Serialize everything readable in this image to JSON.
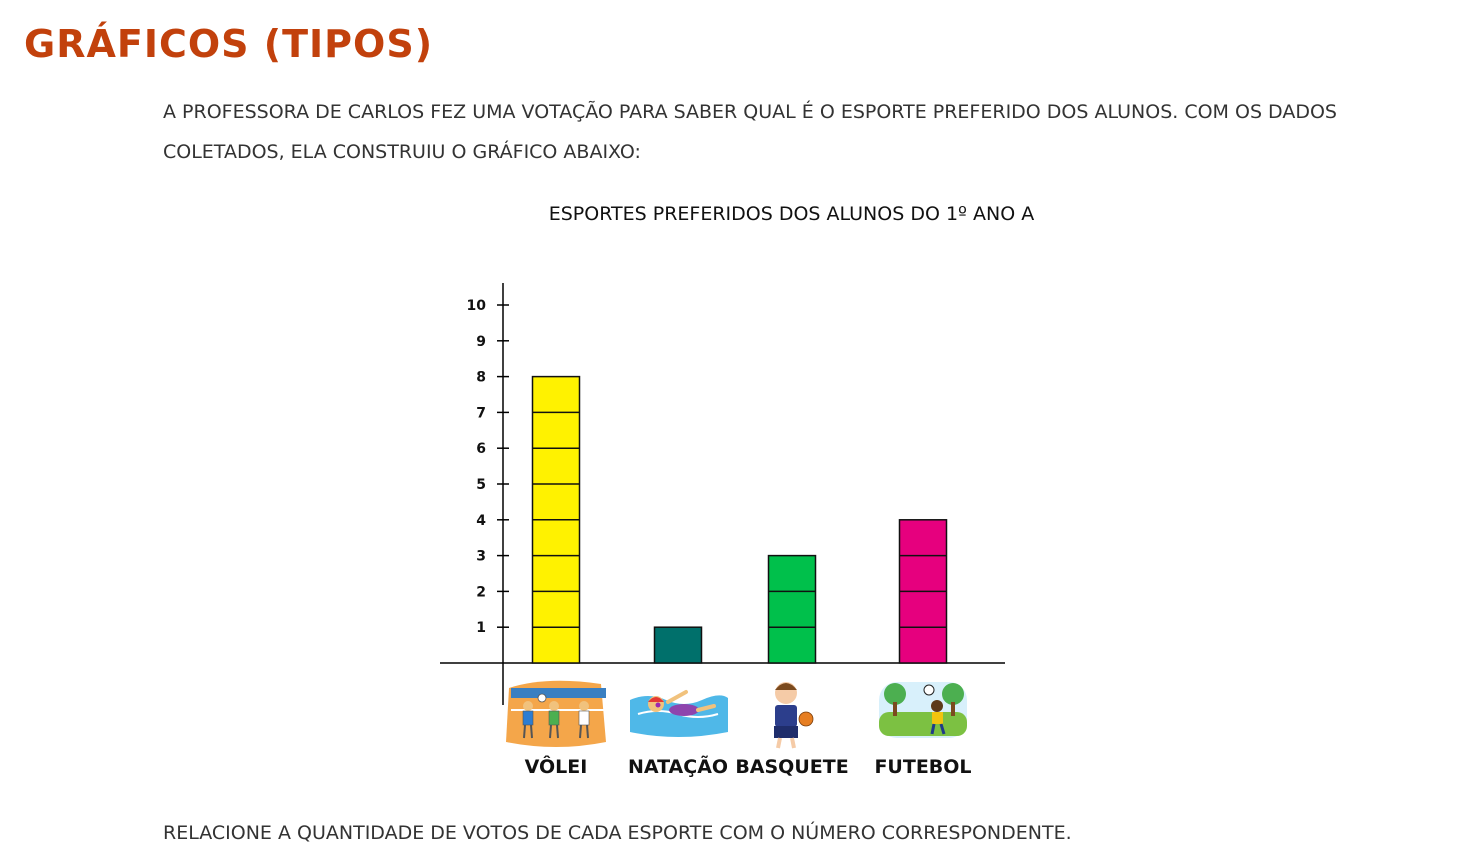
{
  "page": {
    "title": "GRÁFICOS (TIPOS)",
    "intro_line1": "A PROFESSORA DE CARLOS FEZ UMA VOTAÇÃO PARA SABER QUAL É O ESPORTE PREFERIDO DOS ALUNOS. COM OS DADOS",
    "intro_line2": "COLETADOS, ELA CONSTRUIU O GRÁFICO ABAIXO:",
    "instruction": "RELACIONE A QUANTIDADE DE VOTOS DE CADA ESPORTE COM O NÚMERO CORRESPONDENTE."
  },
  "chart_data": {
    "type": "bar",
    "title": "ESPORTES PREFERIDOS DOS ALUNOS DO 1º ANO A",
    "xlabel": "",
    "ylabel": "",
    "categories": [
      "VÔLEI",
      "NATAÇÃO",
      "BASQUETE",
      "FUTEBOL"
    ],
    "values": [
      8,
      1,
      3,
      4
    ],
    "colors": [
      "#fff200",
      "#00706b",
      "#00c04b",
      "#e6007e"
    ],
    "icons": [
      "volleyball-scene-icon",
      "swimmer-icon",
      "basketball-player-icon",
      "soccer-field-icon"
    ],
    "ylim": [
      0,
      10
    ],
    "yticks": [
      "1",
      "2",
      "3",
      "4",
      "5",
      "6",
      "7",
      "8",
      "9",
      "10"
    ],
    "grid": false,
    "segmented_bars": true
  }
}
